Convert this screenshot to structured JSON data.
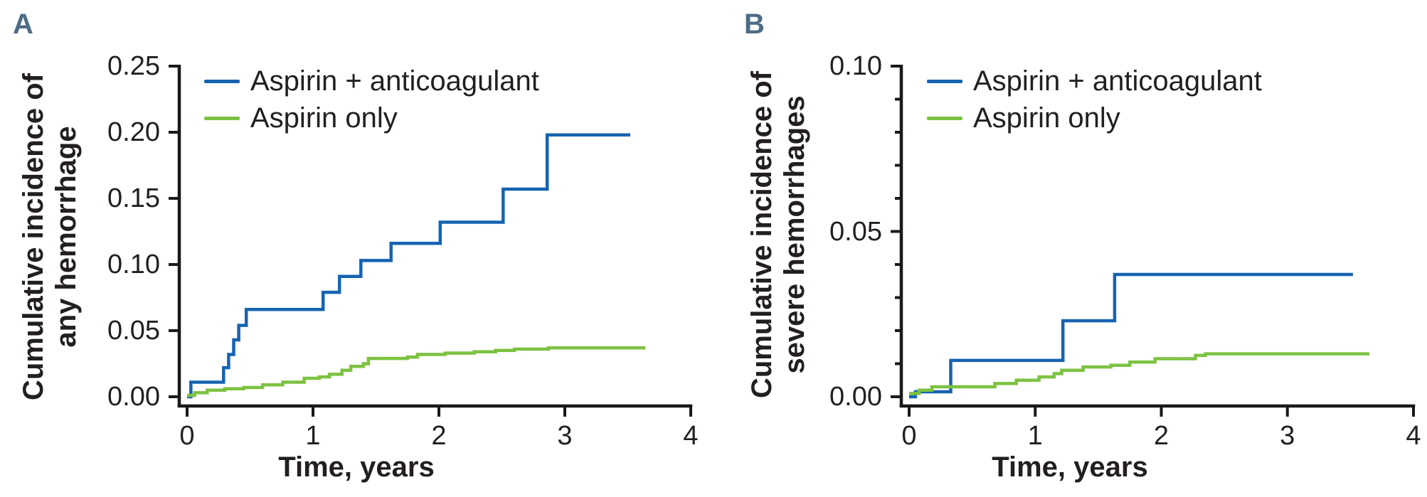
{
  "colors": {
    "background": "#ffffff",
    "text": "#231f20",
    "axis": "#1b1819",
    "panel_label": "#4d6c85",
    "aspirin_anticoagulant_blue": "#1663b2",
    "aspirin_only_green": "#7cc241"
  },
  "chart_data": [
    {
      "type": "line",
      "style": "kaplan-meier-step",
      "panel_label": "A",
      "xlabel": "Time, years",
      "ylabel_lines": [
        "Cumulative incidence of",
        "any hemorrhage"
      ],
      "x_axis": {
        "range": [
          0,
          4
        ],
        "ticks": [
          {
            "v": 0,
            "label": "0"
          },
          {
            "v": 1,
            "label": "1"
          },
          {
            "v": 2,
            "label": "2"
          },
          {
            "v": 3,
            "label": "3"
          },
          {
            "v": 4,
            "label": "4"
          }
        ]
      },
      "y_axis": {
        "range": [
          0,
          0.25
        ],
        "ticks": [
          {
            "v": 0.0,
            "label": "0.00"
          },
          {
            "v": 0.05,
            "label": "0.05"
          },
          {
            "v": 0.1,
            "label": "0.10"
          },
          {
            "v": 0.15,
            "label": "0.15"
          },
          {
            "v": 0.2,
            "label": "0.20"
          },
          {
            "v": 0.25,
            "label": "0.25"
          }
        ],
        "minor_ticks": []
      },
      "legend_position": "top-left-inside",
      "grid": false,
      "series": [
        {
          "name": "Aspirin + anticoagulant",
          "color": "#1663b2",
          "points": [
            [
              0,
              0
            ],
            [
              0.03,
              0.011
            ],
            [
              0.29,
              0.022
            ],
            [
              0.33,
              0.032
            ],
            [
              0.37,
              0.043
            ],
            [
              0.41,
              0.054
            ],
            [
              0.47,
              0.066
            ],
            [
              1.08,
              0.079
            ],
            [
              1.21,
              0.091
            ],
            [
              1.38,
              0.103
            ],
            [
              1.62,
              0.116
            ],
            [
              2.01,
              0.132
            ],
            [
              2.51,
              0.157
            ],
            [
              2.86,
              0.198
            ],
            [
              3.52,
              0.198
            ]
          ]
        },
        {
          "name": "Aspirin only",
          "color": "#7cc241",
          "points": [
            [
              0,
              0.001
            ],
            [
              0.06,
              0.003
            ],
            [
              0.16,
              0.005
            ],
            [
              0.3,
              0.006
            ],
            [
              0.45,
              0.007
            ],
            [
              0.6,
              0.009
            ],
            [
              0.76,
              0.011
            ],
            [
              0.93,
              0.014
            ],
            [
              1.05,
              0.015
            ],
            [
              1.13,
              0.017
            ],
            [
              1.23,
              0.02
            ],
            [
              1.3,
              0.023
            ],
            [
              1.4,
              0.025
            ],
            [
              1.44,
              0.029
            ],
            [
              1.75,
              0.03
            ],
            [
              1.83,
              0.032
            ],
            [
              2.05,
              0.033
            ],
            [
              2.28,
              0.034
            ],
            [
              2.45,
              0.035
            ],
            [
              2.6,
              0.036
            ],
            [
              2.87,
              0.037
            ],
            [
              3.64,
              0.037
            ]
          ]
        }
      ]
    },
    {
      "type": "line",
      "style": "kaplan-meier-step",
      "panel_label": "B",
      "xlabel": "Time, years",
      "ylabel_lines": [
        "Cumulative incidence of",
        "severe hemorrhages"
      ],
      "x_axis": {
        "range": [
          0,
          4
        ],
        "ticks": [
          {
            "v": 0,
            "label": "0"
          },
          {
            "v": 1,
            "label": "1"
          },
          {
            "v": 2,
            "label": "2"
          },
          {
            "v": 3,
            "label": "3"
          },
          {
            "v": 4,
            "label": "4"
          }
        ]
      },
      "y_axis": {
        "range": [
          0,
          0.1
        ],
        "ticks": [
          {
            "v": 0.0,
            "label": "0.00"
          },
          {
            "v": 0.05,
            "label": "0.05"
          },
          {
            "v": 0.1,
            "label": "0.10"
          }
        ],
        "minor_ticks": [
          0.01,
          0.02,
          0.03,
          0.04,
          0.06,
          0.07,
          0.08,
          0.09
        ]
      },
      "legend_position": "top-left-inside",
      "grid": false,
      "series": [
        {
          "name": "Aspirin + anticoagulant",
          "color": "#1663b2",
          "points": [
            [
              0,
              0
            ],
            [
              0.05,
              0.0015
            ],
            [
              0.33,
              0.011
            ],
            [
              1.22,
              0.023
            ],
            [
              1.63,
              0.037
            ],
            [
              3.52,
              0.037
            ]
          ]
        },
        {
          "name": "Aspirin only",
          "color": "#7cc241",
          "points": [
            [
              0,
              0.001
            ],
            [
              0.08,
              0.002
            ],
            [
              0.18,
              0.003
            ],
            [
              0.68,
              0.004
            ],
            [
              0.85,
              0.005
            ],
            [
              1.03,
              0.006
            ],
            [
              1.15,
              0.007
            ],
            [
              1.21,
              0.008
            ],
            [
              1.38,
              0.009
            ],
            [
              1.6,
              0.0095
            ],
            [
              1.75,
              0.0105
            ],
            [
              1.95,
              0.0115
            ],
            [
              2.27,
              0.0125
            ],
            [
              2.35,
              0.013
            ],
            [
              3.65,
              0.013
            ]
          ]
        }
      ]
    }
  ]
}
